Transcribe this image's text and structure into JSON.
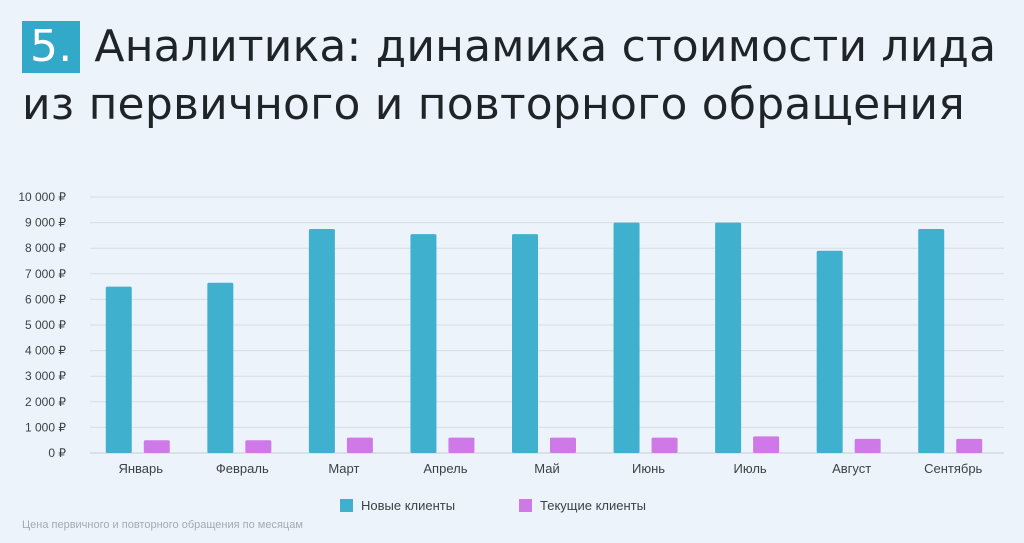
{
  "header": {
    "badge": "5.",
    "title_line1": "Аналитика: динамика стоимости лида",
    "title_line2": "из первичного и повторного обращения"
  },
  "chart_data": {
    "type": "bar",
    "categories": [
      "Январь",
      "Февраль",
      "Март",
      "Апрель",
      "Май",
      "Июнь",
      "Июль",
      "Август",
      "Сентябрь"
    ],
    "series": [
      {
        "name": "Новые клиенты",
        "color": "#40b0cf",
        "values": [
          6500,
          6650,
          8750,
          8550,
          8550,
          9000,
          9000,
          7900,
          8750
        ]
      },
      {
        "name": "Текущие клиенты",
        "color": "#cf79e8",
        "values": [
          500,
          500,
          600,
          600,
          600,
          600,
          650,
          550,
          550
        ]
      }
    ],
    "ylim": [
      0,
      10000
    ],
    "yticks": [
      "0 ₽",
      "1 000 ₽",
      "2 000 ₽",
      "3 000 ₽",
      "4 000 ₽",
      "5 000 ₽",
      "6 000 ₽",
      "7 000 ₽",
      "8 000 ₽",
      "9 000 ₽",
      "10 000 ₽"
    ],
    "grid": true,
    "legend_position": "bottom"
  },
  "footnote": "Цена первичного и повторного обращения по месяцам"
}
